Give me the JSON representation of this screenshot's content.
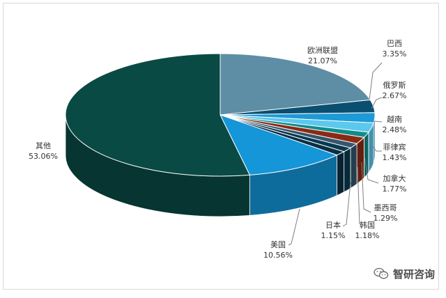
{
  "chart_data": {
    "type": "pie",
    "style": "3d",
    "categories": [
      "欧洲联盟",
      "巴西",
      "俄罗斯",
      "越南",
      "菲律宾",
      "加拿大",
      "墨西哥",
      "韩国",
      "日本",
      "美国",
      "其他"
    ],
    "values": [
      21.07,
      3.35,
      2.67,
      2.48,
      1.43,
      1.77,
      1.29,
      1.18,
      1.15,
      10.56,
      53.06
    ],
    "value_labels": [
      "21.07%",
      "3.35%",
      "2.67%",
      "2.48%",
      "1.43%",
      "1.77%",
      "1.29%",
      "1.18%",
      "1.15%",
      "10.56%",
      "53.06%"
    ],
    "colors": [
      "#5e8ea5",
      "#0a4f70",
      "#1e9ad6",
      "#5bc8ee",
      "#0f8c8a",
      "#8b2a14",
      "#34566e",
      "#073a52",
      "#0c2f45",
      "#1496d8",
      "#0a4a44"
    ],
    "legend": "none"
  },
  "watermark": {
    "text": "智研咨询",
    "icon": "wechat-logo-icon"
  }
}
